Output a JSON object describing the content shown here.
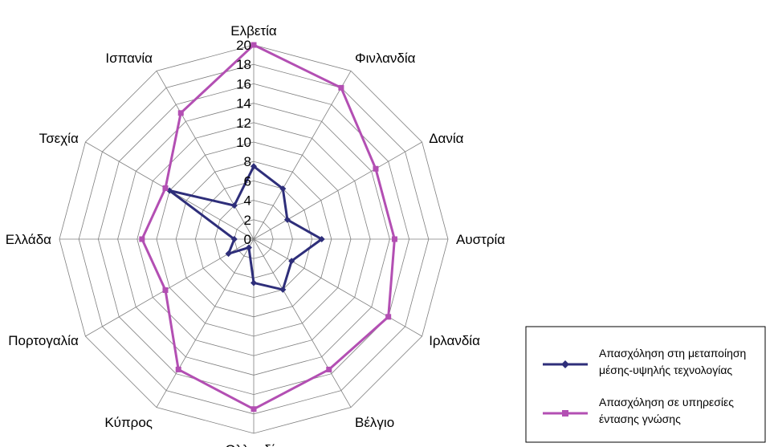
{
  "chart_data": {
    "type": "radar",
    "title": "",
    "categories": [
      "Ελβετία",
      "Φινλανδία",
      "Δανία",
      "Αυστρία",
      "Ιρλανδία",
      "Βέλγιο",
      "Ολλανδία",
      "Κύπρος",
      "Πορτογαλία",
      "Ελλάδα",
      "Τσεχία",
      "Ισπανία"
    ],
    "r_ticks": [
      "0",
      "2",
      "4",
      "6",
      "8",
      "10",
      "12",
      "14",
      "16",
      "18",
      "20"
    ],
    "rlim": [
      0,
      20
    ],
    "grid": true,
    "legend_position": "bottom-right",
    "series": [
      {
        "name": "Απασχόληση στη μεταποίηση μέσης-υψηλής τεχνολογίας",
        "name_lines": [
          "Απασχόληση στη μεταποίηση",
          "μέσης-υψηλής τεχνολογίας"
        ],
        "color": "#2e2e7a",
        "marker": "diamond",
        "values": [
          7.5,
          6.0,
          4.0,
          7.0,
          4.5,
          6.0,
          4.5,
          1.0,
          3.0,
          2.0,
          10.0,
          4.0
        ]
      },
      {
        "name": "Απασχόληση σε υπηρεσίες έντασης γνώσης",
        "name_lines": [
          "Απασχόληση σε υπηρεσίες",
          "έντασης γνώσης"
        ],
        "color": "#b34fb3",
        "marker": "square",
        "values": [
          20.0,
          18.0,
          14.5,
          14.5,
          16.0,
          15.5,
          17.5,
          15.5,
          10.5,
          11.5,
          10.5,
          15.0
        ]
      }
    ]
  }
}
